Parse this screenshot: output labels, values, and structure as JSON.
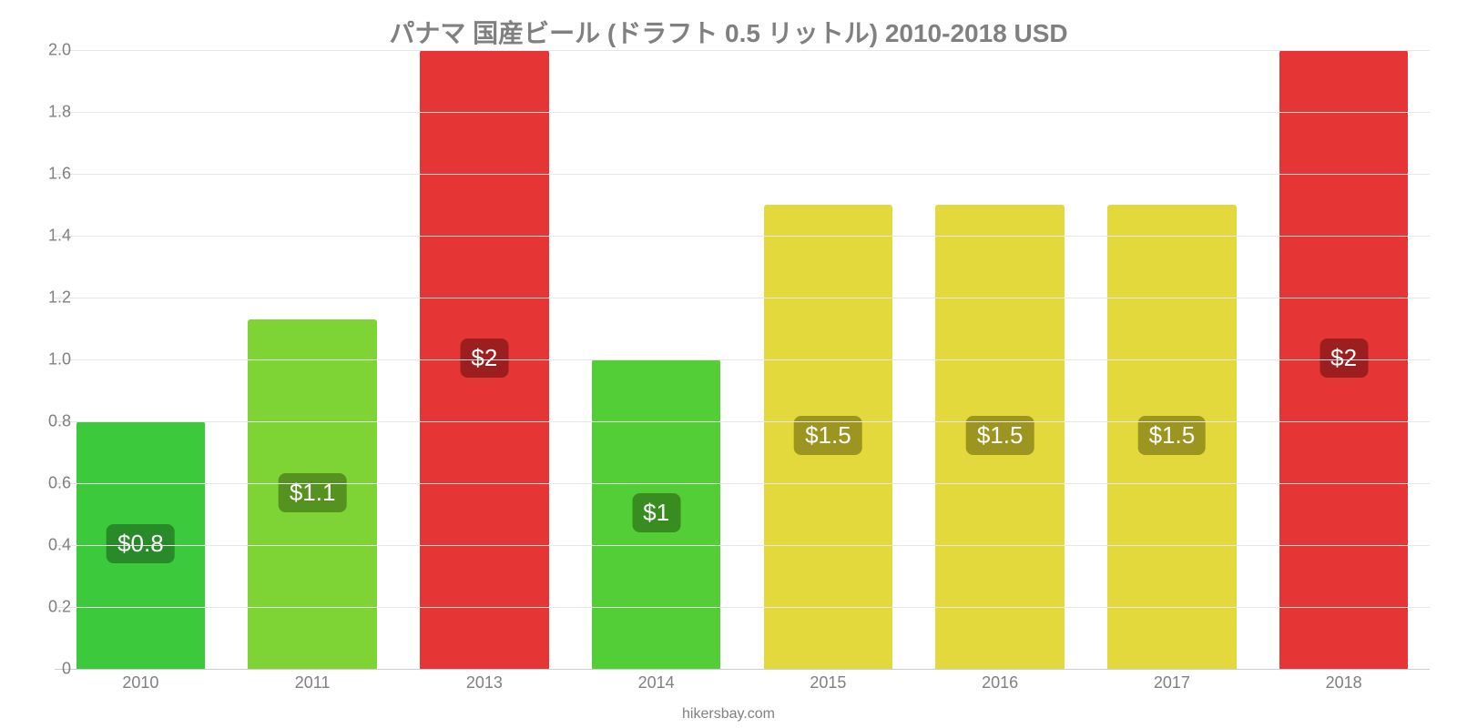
{
  "chart": {
    "type": "bar",
    "title": "パナマ 国産ビール (ドラフト 0.5 リットル) 2010-2018 USD",
    "title_fontsize": 28,
    "title_color": "#808080",
    "background_color": "#ffffff",
    "grid_color": "#e6e6e6",
    "axis_color": "#c8ced4",
    "ylim": [
      0,
      2.0
    ],
    "ytick_step": 0.2,
    "yticks": [
      "0",
      "0.2",
      "0.4",
      "0.6",
      "0.8",
      "1.0",
      "1.2",
      "1.4",
      "1.6",
      "1.8",
      "2.0"
    ],
    "bar_width_ratio": 0.75,
    "label_fontsize": 18,
    "label_color": "#808080",
    "value_label_fontsize": 26,
    "source": "hikersbay.com",
    "categories": [
      "2010",
      "2011",
      "2013",
      "2014",
      "2015",
      "2016",
      "2017",
      "2018"
    ],
    "values": [
      0.8,
      1.13,
      2.0,
      1.0,
      1.5,
      1.5,
      1.5,
      2.0
    ],
    "value_labels": [
      "$0.8",
      "$1.1",
      "$2",
      "$1",
      "$1.5",
      "$1.5",
      "$1.5",
      "$2"
    ],
    "bar_colors": [
      "#3cc93c",
      "#7ed335",
      "#e63535",
      "#54ce36",
      "#e3d83c",
      "#e3d83c",
      "#e3d83c",
      "#e63535"
    ],
    "badge_colors": [
      "#288a28",
      "#56921f",
      "#9c1e1e",
      "#398d20",
      "#9c951f",
      "#9c951f",
      "#9c951f",
      "#9c1e1e"
    ]
  }
}
